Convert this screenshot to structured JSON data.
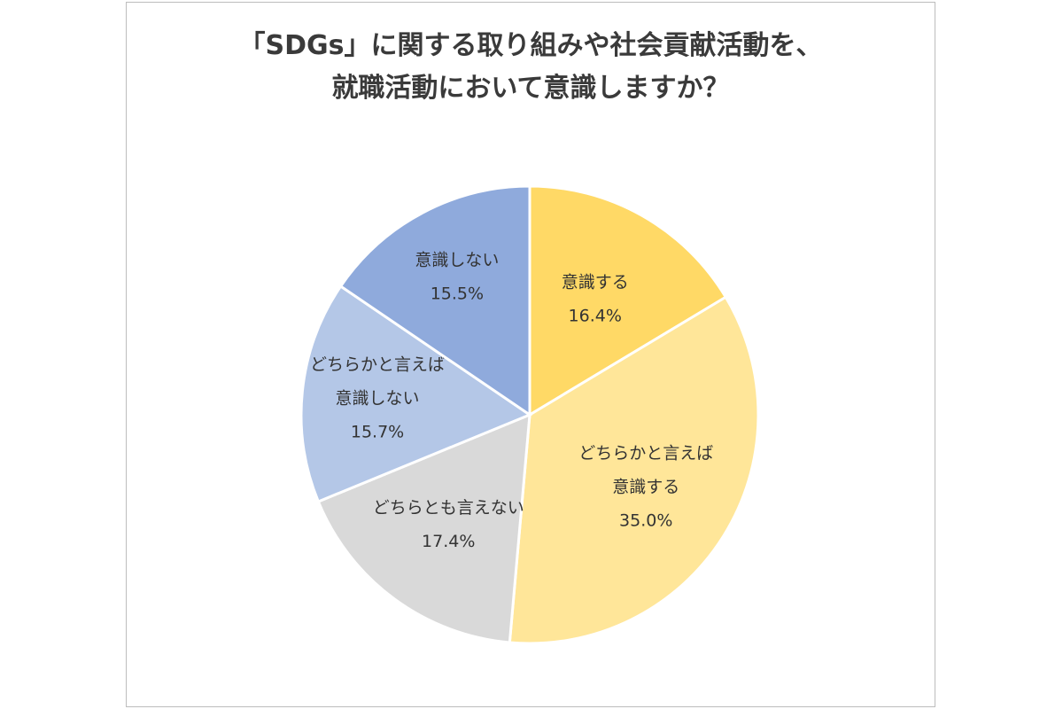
{
  "chart_data": {
    "type": "pie",
    "title_lines": [
      "「SDGs」に関する取り組みや社会貢献活動を、",
      "就職活動において意識しますか？"
    ],
    "slices": [
      {
        "label_lines": [
          "意識する"
        ],
        "value": 16.4,
        "value_text": "16.4%",
        "color": "#FFD966"
      },
      {
        "label_lines": [
          "どちらかと言えば",
          "意識する"
        ],
        "value": 35.0,
        "value_text": "35.0%",
        "color": "#FFE699"
      },
      {
        "label_lines": [
          "どちらとも言えない"
        ],
        "value": 17.4,
        "value_text": "17.4%",
        "color": "#D9D9D9"
      },
      {
        "label_lines": [
          "どちらかと言えば",
          "意識しない"
        ],
        "value": 15.7,
        "value_text": "15.7%",
        "color": "#B4C7E7"
      },
      {
        "label_lines": [
          "意識しない"
        ],
        "value": 15.5,
        "value_text": "15.5%",
        "color": "#8FAADC"
      }
    ],
    "start": "12 o'clock",
    "direction": "clockwise",
    "slice_border_color": "#ffffff",
    "legend": "none"
  }
}
